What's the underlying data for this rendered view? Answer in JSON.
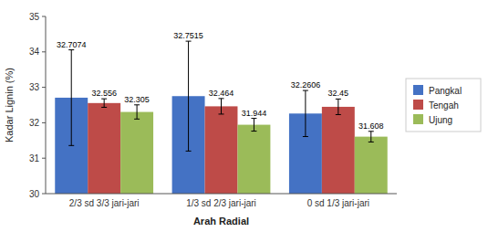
{
  "chart_data": {
    "type": "bar",
    "categories": [
      "2/3 sd 3/3 jari-jari",
      "1/3 sd 2/3 jari-jari",
      "0 sd 1/3 jari-jari"
    ],
    "series": [
      {
        "name": "Pangkal",
        "color": "#4472C4",
        "values": [
          32.7074,
          32.7515,
          32.2606
        ],
        "errors": [
          1.35,
          1.55,
          0.65
        ]
      },
      {
        "name": "Tengah",
        "color": "#BE4B48",
        "values": [
          32.556,
          32.464,
          32.45
        ],
        "errors": [
          0.12,
          0.22,
          0.22
        ]
      },
      {
        "name": "Ujung",
        "color": "#9BBB59",
        "values": [
          32.305,
          31.944,
          31.608
        ],
        "errors": [
          0.2,
          0.18,
          0.15
        ]
      }
    ],
    "x_label": "Arah Radial",
    "y_label": "Kadar Lignin (%)",
    "ylim": [
      30,
      35
    ],
    "yticks": [
      30,
      31,
      32,
      33,
      34,
      35
    ],
    "grid": false,
    "legend": "right",
    "data_labels": true
  }
}
